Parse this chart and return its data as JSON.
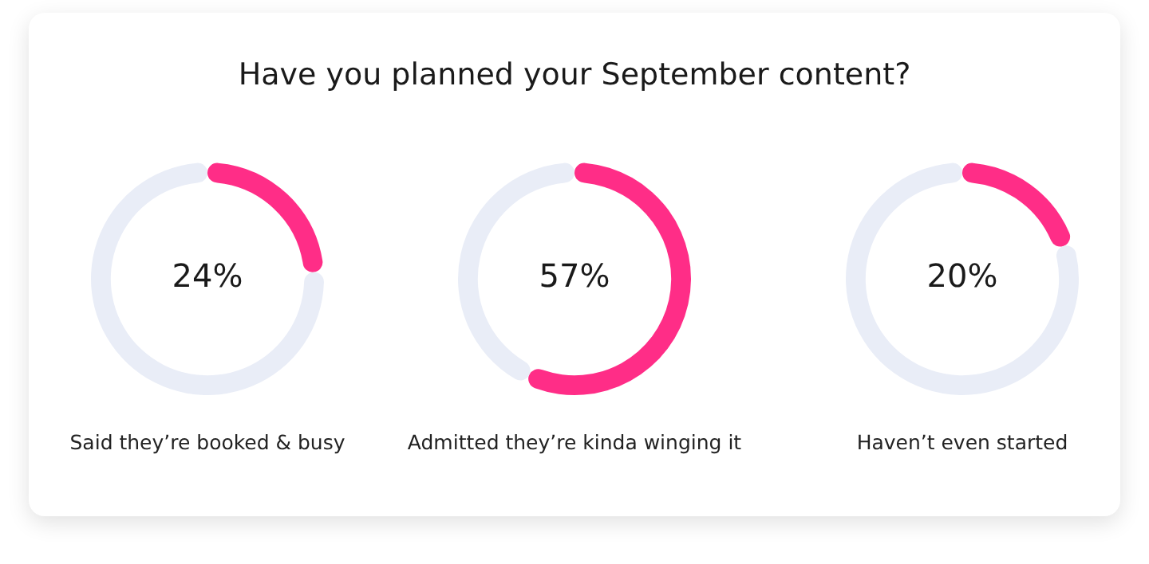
{
  "chart_data": [
    {
      "type": "donut",
      "title": "Have you planned your September content?",
      "xlabel": "Said they’re booked & busy",
      "categories": [
        null,
        null
      ],
      "values": [
        24,
        76
      ],
      "colors": [
        "#ff2d87",
        "#e9edf7"
      ],
      "value_labels": [
        "24%",
        null
      ],
      "legend": false
    },
    {
      "type": "donut",
      "xlabel": "Admitted they’re kinda winging it",
      "categories": [
        null,
        null
      ],
      "values": [
        57,
        43
      ],
      "colors": [
        "#ff2d87",
        "#e9edf7"
      ],
      "value_labels": [
        "57%",
        null
      ],
      "legend": false
    },
    {
      "type": "donut",
      "xlabel": "Haven’t even started",
      "categories": [
        null,
        null
      ],
      "values": [
        20,
        80
      ],
      "colors": [
        "#ff2d87",
        "#e9edf7"
      ],
      "value_labels": [
        "20%",
        null
      ],
      "legend": false
    }
  ]
}
